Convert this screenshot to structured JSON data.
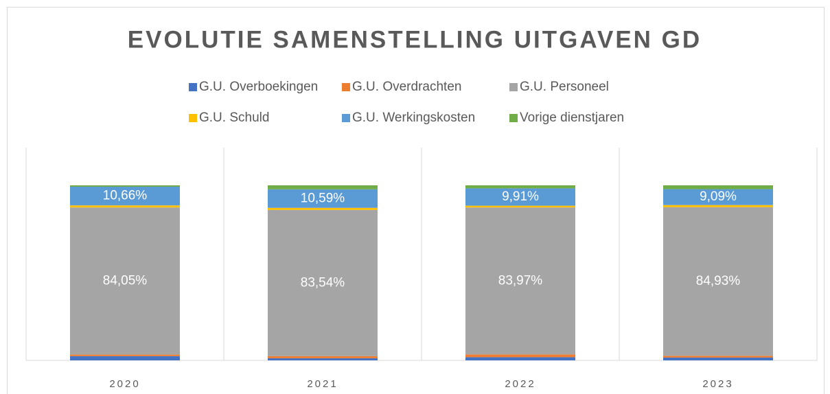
{
  "chart_data": {
    "type": "stacked_bar",
    "title": "EVOLUTIE SAMENSTELLING UITGAVEN GD",
    "categories": [
      "2020",
      "2021",
      "2022",
      "2023"
    ],
    "ylim": [
      0,
      100
    ],
    "series": [
      {
        "name": "G.U. Overboekingen",
        "color": "#4472c4",
        "values": [
          2.4,
          1.2,
          1.8,
          1.6
        ]
      },
      {
        "name": "G.U. Overdrachten",
        "color": "#ed7d31",
        "values": [
          0.9,
          1.2,
          1.6,
          1.0
        ]
      },
      {
        "name": "G.U. Personeel",
        "color": "#a5a5a5",
        "values": [
          84.05,
          83.54,
          83.97,
          84.93
        ],
        "value_labels": [
          "84,05%",
          "83,54%",
          "83,97%",
          "84,93%"
        ]
      },
      {
        "name": "G.U. Schuld",
        "color": "#ffc000",
        "values": [
          1.2,
          1.2,
          1.0,
          1.2
        ]
      },
      {
        "name": "G.U. Werkingskosten",
        "color": "#5b9bd5",
        "values": [
          10.66,
          10.59,
          9.91,
          9.09
        ],
        "value_labels": [
          "10,66%",
          "10,59%",
          "9,91%",
          "9,09%"
        ]
      },
      {
        "name": "Vorige dienstjaren",
        "color": "#70ad47",
        "values": [
          0.79,
          2.27,
          1.72,
          2.18
        ]
      }
    ]
  }
}
